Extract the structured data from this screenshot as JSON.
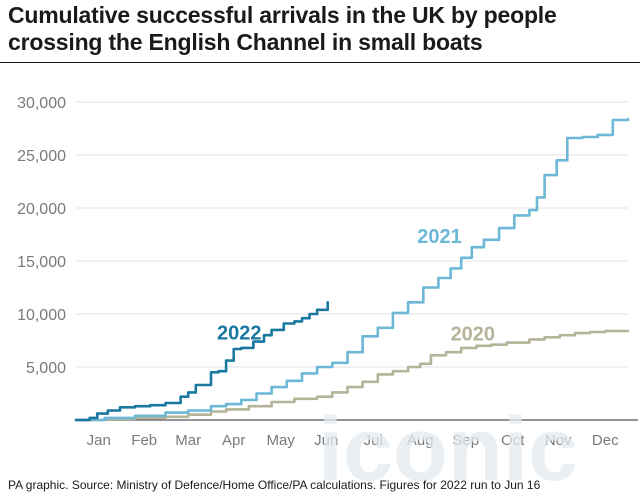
{
  "title": "Cumulative successful arrivals in the UK by people crossing the English Channel in small boats",
  "footer": "PA graphic. Source: Ministry of Defence/Home Office/PA calculations. Figures for 2022 run to Jun 16",
  "watermark": "iconic",
  "chart_data": {
    "type": "line",
    "xlabel": "",
    "ylabel": "",
    "x_unit": "day of year",
    "xlim": [
      1,
      365
    ],
    "ylim": [
      0,
      30000
    ],
    "y_ticks": [
      0,
      5000,
      10000,
      15000,
      20000,
      25000,
      30000
    ],
    "y_tick_labels": [
      "",
      "5,000",
      "10,000",
      "15,000",
      "20,000",
      "25,000",
      "30,000"
    ],
    "x_ticks": [
      {
        "label": "Jan",
        "day": 16
      },
      {
        "label": "Feb",
        "day": 46
      },
      {
        "label": "Mar",
        "day": 75
      },
      {
        "label": "Apr",
        "day": 105
      },
      {
        "label": "May",
        "day": 136
      },
      {
        "label": "Jun",
        "day": 166
      },
      {
        "label": "Jul",
        "day": 197
      },
      {
        "label": "Aug",
        "day": 228
      },
      {
        "label": "Sep",
        "day": 258
      },
      {
        "label": "Oct",
        "day": 289
      },
      {
        "label": "Nov",
        "day": 319
      },
      {
        "label": "Dec",
        "day": 350
      }
    ],
    "grid": true,
    "series": [
      {
        "name": "2020",
        "color": "#b5b39a",
        "x": [
          1,
          20,
          40,
          60,
          75,
          90,
          100,
          115,
          130,
          145,
          160,
          170,
          180,
          190,
          200,
          210,
          220,
          228,
          235,
          245,
          255,
          265,
          275,
          285,
          300,
          310,
          320,
          330,
          340,
          350,
          365
        ],
        "y": [
          0,
          100,
          200,
          300,
          500,
          800,
          1000,
          1300,
          1700,
          2000,
          2200,
          2600,
          3100,
          3600,
          4300,
          4600,
          5000,
          5300,
          6100,
          6400,
          6800,
          7000,
          7100,
          7300,
          7600,
          7800,
          8000,
          8200,
          8300,
          8400,
          8400
        ]
      },
      {
        "name": "2021",
        "color": "#6cb8d6",
        "x": [
          1,
          20,
          40,
          60,
          75,
          90,
          100,
          110,
          120,
          130,
          140,
          150,
          160,
          170,
          180,
          190,
          200,
          210,
          220,
          230,
          240,
          248,
          255,
          262,
          270,
          280,
          290,
          300,
          305,
          310,
          318,
          325,
          335,
          345,
          355,
          365
        ],
        "y": [
          0,
          200,
          400,
          700,
          900,
          1300,
          1500,
          1900,
          2500,
          3100,
          3700,
          4400,
          5000,
          5400,
          6400,
          7900,
          8700,
          10100,
          11100,
          12500,
          13400,
          14300,
          15300,
          16300,
          17000,
          18100,
          19300,
          19800,
          21000,
          23100,
          24500,
          26600,
          26700,
          26900,
          28300,
          28400
        ]
      },
      {
        "name": "2022",
        "color": "#1a78a0",
        "x": [
          1,
          10,
          15,
          22,
          30,
          40,
          50,
          60,
          70,
          75,
          80,
          90,
          95,
          100,
          105,
          110,
          118,
          125,
          130,
          138,
          145,
          150,
          155,
          160,
          167
        ],
        "y": [
          0,
          200,
          600,
          900,
          1200,
          1300,
          1400,
          1600,
          2200,
          2600,
          3300,
          4500,
          4600,
          5600,
          6700,
          6800,
          7400,
          8000,
          8500,
          9100,
          9300,
          9600,
          10000,
          10400,
          11100
        ]
      }
    ],
    "annotations": [
      {
        "text": "2022",
        "series": "2022"
      },
      {
        "text": "2021",
        "series": "2021"
      },
      {
        "text": "2020",
        "series": "2020"
      }
    ]
  }
}
